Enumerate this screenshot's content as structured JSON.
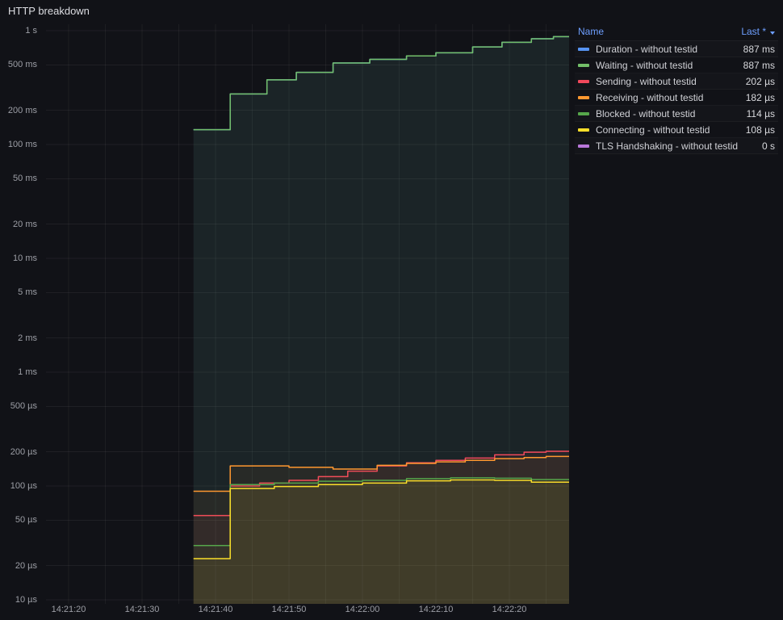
{
  "panel": {
    "title": "HTTP breakdown"
  },
  "legend": {
    "name_header": "Name",
    "last_header": "Last *",
    "sort_icon": "sort-desc-icon",
    "rows": [
      {
        "name": "Duration - without testid",
        "last": "887 ms",
        "color": "#5794F2"
      },
      {
        "name": "Waiting - without testid",
        "last": "887 ms",
        "color": "#73BF69"
      },
      {
        "name": "Sending - without testid",
        "last": "202 µs",
        "color": "#F2495C"
      },
      {
        "name": "Receiving - without testid",
        "last": "182 µs",
        "color": "#FF9830"
      },
      {
        "name": "Blocked - without testid",
        "last": "114 µs",
        "color": "#56A64B"
      },
      {
        "name": "Connecting - without testid",
        "last": "108 µs",
        "color": "#FADE2A"
      },
      {
        "name": "TLS Handshaking - without testid",
        "last": "0 s",
        "color": "#B877D9"
      }
    ]
  },
  "chart_data": {
    "type": "line",
    "title": "HTTP breakdown",
    "y_scale": "log",
    "unit": "µs",
    "ylim": [
      10,
      1000000
    ],
    "grid": true,
    "legend_position": "right",
    "time_origin": "14:21:20",
    "y_ticks": [
      {
        "v": 1000000,
        "label": "1 s"
      },
      {
        "v": 500000,
        "label": "500 ms"
      },
      {
        "v": 200000,
        "label": "200 ms"
      },
      {
        "v": 100000,
        "label": "100 ms"
      },
      {
        "v": 50000,
        "label": "50 ms"
      },
      {
        "v": 20000,
        "label": "20 ms"
      },
      {
        "v": 10000,
        "label": "10 ms"
      },
      {
        "v": 5000,
        "label": "5 ms"
      },
      {
        "v": 2000,
        "label": "2 ms"
      },
      {
        "v": 1000,
        "label": "1 ms"
      },
      {
        "v": 500,
        "label": "500 µs"
      },
      {
        "v": 200,
        "label": "200 µs"
      },
      {
        "v": 100,
        "label": "100 µs"
      },
      {
        "v": 50,
        "label": "50 µs"
      },
      {
        "v": 20,
        "label": "20 µs"
      },
      {
        "v": 10,
        "label": "10 µs"
      }
    ],
    "x_ticks": [
      {
        "t": 0,
        "label": "14:21:20"
      },
      {
        "t": 10,
        "label": "14:21:30"
      },
      {
        "t": 20,
        "label": "14:21:40"
      },
      {
        "t": 30,
        "label": "14:21:50"
      },
      {
        "t": 40,
        "label": "14:22:00"
      },
      {
        "t": 50,
        "label": "14:22:10"
      },
      {
        "t": 60,
        "label": "14:22:20"
      }
    ],
    "series": [
      {
        "name": "Duration - without testid",
        "color": "#5794F2",
        "fill_opacity": 0.06,
        "points": [
          [
            17,
            135000
          ],
          [
            22,
            278000
          ],
          [
            27,
            370000
          ],
          [
            31,
            430000
          ],
          [
            36,
            520000
          ],
          [
            41,
            560000
          ],
          [
            46,
            600000
          ],
          [
            50,
            640000
          ],
          [
            55,
            720000
          ],
          [
            59,
            790000
          ],
          [
            63,
            850000
          ],
          [
            66,
            887000
          ],
          [
            68.2,
            887000
          ]
        ]
      },
      {
        "name": "Waiting - without testid",
        "color": "#73BF69",
        "fill_opacity": 0.07,
        "points": [
          [
            17,
            135000
          ],
          [
            22,
            278000
          ],
          [
            27,
            370000
          ],
          [
            31,
            430000
          ],
          [
            36,
            520000
          ],
          [
            41,
            560000
          ],
          [
            46,
            600000
          ],
          [
            50,
            640000
          ],
          [
            55,
            720000
          ],
          [
            59,
            790000
          ],
          [
            63,
            850000
          ],
          [
            66,
            887000
          ],
          [
            68.2,
            887000
          ]
        ]
      },
      {
        "name": "Sending - without testid",
        "color": "#F2495C",
        "fill_opacity": 0.06,
        "points": [
          [
            17,
            55
          ],
          [
            22,
            100
          ],
          [
            26,
            106
          ],
          [
            30,
            112
          ],
          [
            34,
            121
          ],
          [
            38,
            135
          ],
          [
            42,
            150
          ],
          [
            46,
            160
          ],
          [
            50,
            168
          ],
          [
            54,
            176
          ],
          [
            58,
            188
          ],
          [
            62,
            198
          ],
          [
            65,
            202
          ],
          [
            68.2,
            202
          ]
        ]
      },
      {
        "name": "Receiving - without testid",
        "color": "#FF9830",
        "fill_opacity": 0.06,
        "points": [
          [
            17,
            90
          ],
          [
            22,
            150
          ],
          [
            30,
            146
          ],
          [
            36,
            141
          ],
          [
            42,
            152
          ],
          [
            46,
            158
          ],
          [
            50,
            163
          ],
          [
            54,
            168
          ],
          [
            58,
            174
          ],
          [
            62,
            178
          ],
          [
            65,
            182
          ],
          [
            68.2,
            182
          ]
        ]
      },
      {
        "name": "Blocked - without testid",
        "color": "#56A64B",
        "fill_opacity": 0.06,
        "points": [
          [
            17,
            30
          ],
          [
            22,
            103
          ],
          [
            28,
            106
          ],
          [
            34,
            110
          ],
          [
            40,
            112
          ],
          [
            46,
            116
          ],
          [
            52,
            118
          ],
          [
            58,
            117
          ],
          [
            63,
            114
          ],
          [
            68.2,
            114
          ]
        ]
      },
      {
        "name": "Connecting - without testid",
        "color": "#FADE2A",
        "fill_opacity": 0.06,
        "points": [
          [
            17,
            23
          ],
          [
            22,
            95
          ],
          [
            28,
            99
          ],
          [
            34,
            103
          ],
          [
            40,
            106
          ],
          [
            46,
            111
          ],
          [
            52,
            113
          ],
          [
            58,
            112
          ],
          [
            63,
            108
          ],
          [
            68.2,
            108
          ]
        ]
      },
      {
        "name": "TLS Handshaking - without testid",
        "color": "#B877D9",
        "fill_opacity": 0.06,
        "points": []
      }
    ]
  }
}
